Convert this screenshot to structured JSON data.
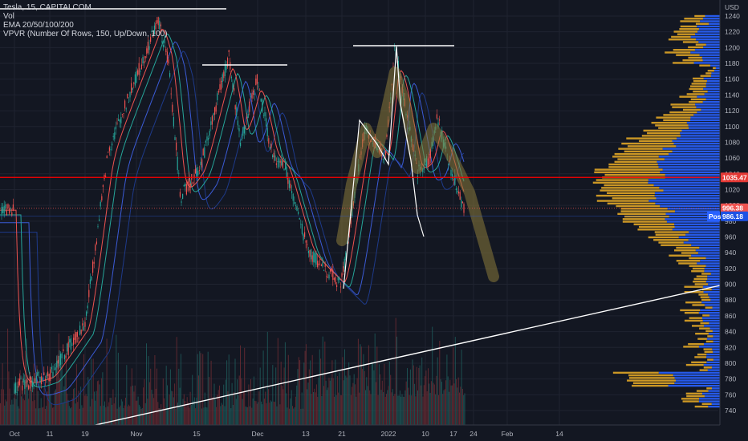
{
  "legend": {
    "symbol": "Tesla, 15, CAPITALCOM",
    "vol": "Vol",
    "ema": "EMA 20/50/100/200",
    "vpvr": "VPVR (Number Of Rows, 150, Up/Down, 100)"
  },
  "colors": {
    "background": "#131722",
    "grid": "#1f2330",
    "up": "#26a69a",
    "down": "#ef5350",
    "ema20": "#ef5350",
    "ema50": "#26a69a",
    "ema100": "#3b5bd6",
    "ema200": "#1e3a8a",
    "volume_up": "#1e5b5a",
    "volume_down": "#6b2c32",
    "vpvr_up": "#2962ff",
    "vpvr_down": "#e0a526",
    "resistance": "#ff0000",
    "drawing": "#ffffff",
    "highlight": "#8a7a3a"
  },
  "chart_data": {
    "type": "candlestick",
    "currency": "USD",
    "ylim": [
      730,
      1250
    ],
    "y_ticks": [
      740,
      760,
      780,
      800,
      820,
      840,
      860,
      880,
      900,
      920,
      940,
      960,
      980,
      1000,
      1020,
      1040,
      1060,
      1080,
      1100,
      1120,
      1140,
      1160,
      1180,
      1200,
      1220,
      1240
    ],
    "x_ticks": [
      "Oct",
      "11",
      "19",
      "Nov",
      "15",
      "Dec",
      "13",
      "21",
      "2022",
      "10",
      "17",
      "24",
      "Feb",
      "14"
    ],
    "price_path": [
      {
        "t": "Oct",
        "price": 770
      },
      {
        "t": "11",
        "price": 785
      },
      {
        "t": "19",
        "price": 850
      },
      {
        "t": "26",
        "price": 1070
      },
      {
        "t": "Nov",
        "price": 1235
      },
      {
        "t": "8",
        "price": 1180
      },
      {
        "t": "11",
        "price": 1010
      },
      {
        "t": "15",
        "price": 1050
      },
      {
        "t": "17",
        "price": 1190
      },
      {
        "t": "22",
        "price": 1080
      },
      {
        "t": "26",
        "price": 1160
      },
      {
        "t": "Dec",
        "price": 1060
      },
      {
        "t": "6",
        "price": 1050
      },
      {
        "t": "10",
        "price": 1010
      },
      {
        "t": "13",
        "price": 940
      },
      {
        "t": "17",
        "price": 920
      },
      {
        "t": "21",
        "price": 900
      },
      {
        "t": "24",
        "price": 1100
      },
      {
        "t": "27",
        "price": 1060
      },
      {
        "t": "2022",
        "price": 1200
      },
      {
        "t": "6",
        "price": 1040
      },
      {
        "t": "10",
        "price": 1060
      },
      {
        "t": "13",
        "price": 1110
      },
      {
        "t": "17",
        "price": 1035
      },
      {
        "t": "20",
        "price": 996
      }
    ],
    "price_labels": {
      "resistance": "1035.47",
      "last": "996.38",
      "post": "986.18",
      "post_label": "Post"
    },
    "levels": {
      "resistance": 1035.47,
      "last": 996.38,
      "post": 986.18
    }
  }
}
